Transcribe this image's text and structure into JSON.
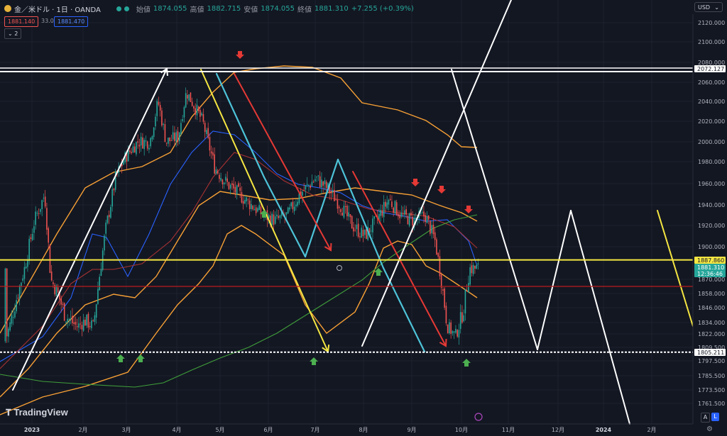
{
  "header": {
    "symbol": "金／米ドル · 1日 · OANDA",
    "open_label": "始値",
    "open_value": "1874.055",
    "high_label": "高値",
    "high_value": "1882.715",
    "low_label": "安値",
    "low_value": "1874.055",
    "close_label": "終値",
    "close_value": "1881.310",
    "change": "+7.255 (+0.39%)",
    "sell_price": "1881.140",
    "spread": "33.0",
    "buy_price": "1881.470",
    "indicator_count": "2"
  },
  "currency": "USD",
  "brand": "TradingView",
  "scale_buttons": {
    "auto": "A",
    "log": "L"
  },
  "colors": {
    "up": "#26a69a",
    "down": "#ef5350",
    "bg": "#131722",
    "yellow": "#f5e642",
    "orange": "#f7a035",
    "blue": "#2962ff",
    "green": "#3f9e3a",
    "red": "#b71c1c",
    "cyan": "#4dc3d8",
    "white": "#ffffff"
  },
  "chart_data": {
    "type": "candlestick",
    "y_axis": {
      "min": 1755,
      "max": 2130,
      "ticks": [
        "2120.000",
        "2100.000",
        "2080.000",
        "2060.000",
        "2040.000",
        "2020.000",
        "2000.000",
        "1980.000",
        "1960.000",
        "1940.000",
        "1920.000",
        "1900.000",
        "1870.000",
        "1858.000",
        "1846.000",
        "1834.000",
        "1822.000",
        "1809.500",
        "1797.500",
        "1785.500",
        "1773.500",
        "1761.500"
      ]
    },
    "x_axis": {
      "ticks": [
        "2023",
        "2月",
        "3月",
        "4月",
        "5月",
        "6月",
        "7月",
        "8月",
        "9月",
        "10月",
        "11月",
        "12月",
        "2024",
        "2月"
      ]
    },
    "price_labels": [
      {
        "text": "2072.127",
        "value": 2072.127
      },
      {
        "text": "1887.860",
        "value": 1887.86
      },
      {
        "text": "1881.310",
        "value": 1881.31
      },
      {
        "text": "12:36:46",
        "value": 1875
      },
      {
        "text": "1805.211",
        "value": 1805.211
      }
    ],
    "horizontal_levels": [
      {
        "name": "resistance",
        "value": 2072.127,
        "color": "#ffffff"
      },
      {
        "name": "yellow-level",
        "value": 1887.86,
        "color": "#f5e642"
      },
      {
        "name": "red-level",
        "value": 1864,
        "color": "#b71c1c"
      },
      {
        "name": "support",
        "value": 1805.211,
        "color": "#ffffff"
      }
    ],
    "candles_close_path": [
      [
        0.05,
        1815
      ],
      [
        0.4,
        1840
      ],
      [
        1.0,
        1880
      ],
      [
        1.5,
        1925
      ],
      [
        2.0,
        1950
      ],
      [
        2.3,
        1870
      ],
      [
        2.6,
        1860
      ],
      [
        3.0,
        1840
      ],
      [
        3.6,
        1830
      ],
      [
        4.0,
        1835
      ],
      [
        4.4,
        1830
      ],
      [
        5.0,
        1915
      ],
      [
        5.5,
        1965
      ],
      [
        6.0,
        1985
      ],
      [
        6.6,
        2000
      ],
      [
        7.2,
        2000
      ],
      [
        7.6,
        2040
      ],
      [
        8.0,
        2000
      ],
      [
        8.6,
        2005
      ],
      [
        9.0,
        2050
      ],
      [
        9.8,
        2020
      ],
      [
        10.4,
        1975
      ],
      [
        11.0,
        1960
      ],
      [
        11.6,
        1950
      ],
      [
        12.2,
        1940
      ],
      [
        12.8,
        1930
      ],
      [
        13.4,
        1925
      ],
      [
        14.0,
        1930
      ],
      [
        14.6,
        1950
      ],
      [
        15.4,
        1965
      ],
      [
        16.0,
        1955
      ],
      [
        16.6,
        1940
      ],
      [
        17.2,
        1920
      ],
      [
        17.8,
        1910
      ],
      [
        18.4,
        1925
      ],
      [
        19.0,
        1945
      ],
      [
        19.6,
        1930
      ],
      [
        20.2,
        1925
      ],
      [
        20.8,
        1930
      ],
      [
        21.3,
        1905
      ],
      [
        21.6,
        1870
      ],
      [
        21.9,
        1830
      ],
      [
        22.3,
        1820
      ],
      [
        22.7,
        1845
      ],
      [
        23.0,
        1880
      ]
    ],
    "arrows_down": [
      5.6,
      19.5,
      20.7,
      21.9
    ],
    "arrows_up": [
      5.4,
      6.0,
      12.6,
      14.9,
      17.7,
      21.9
    ]
  }
}
